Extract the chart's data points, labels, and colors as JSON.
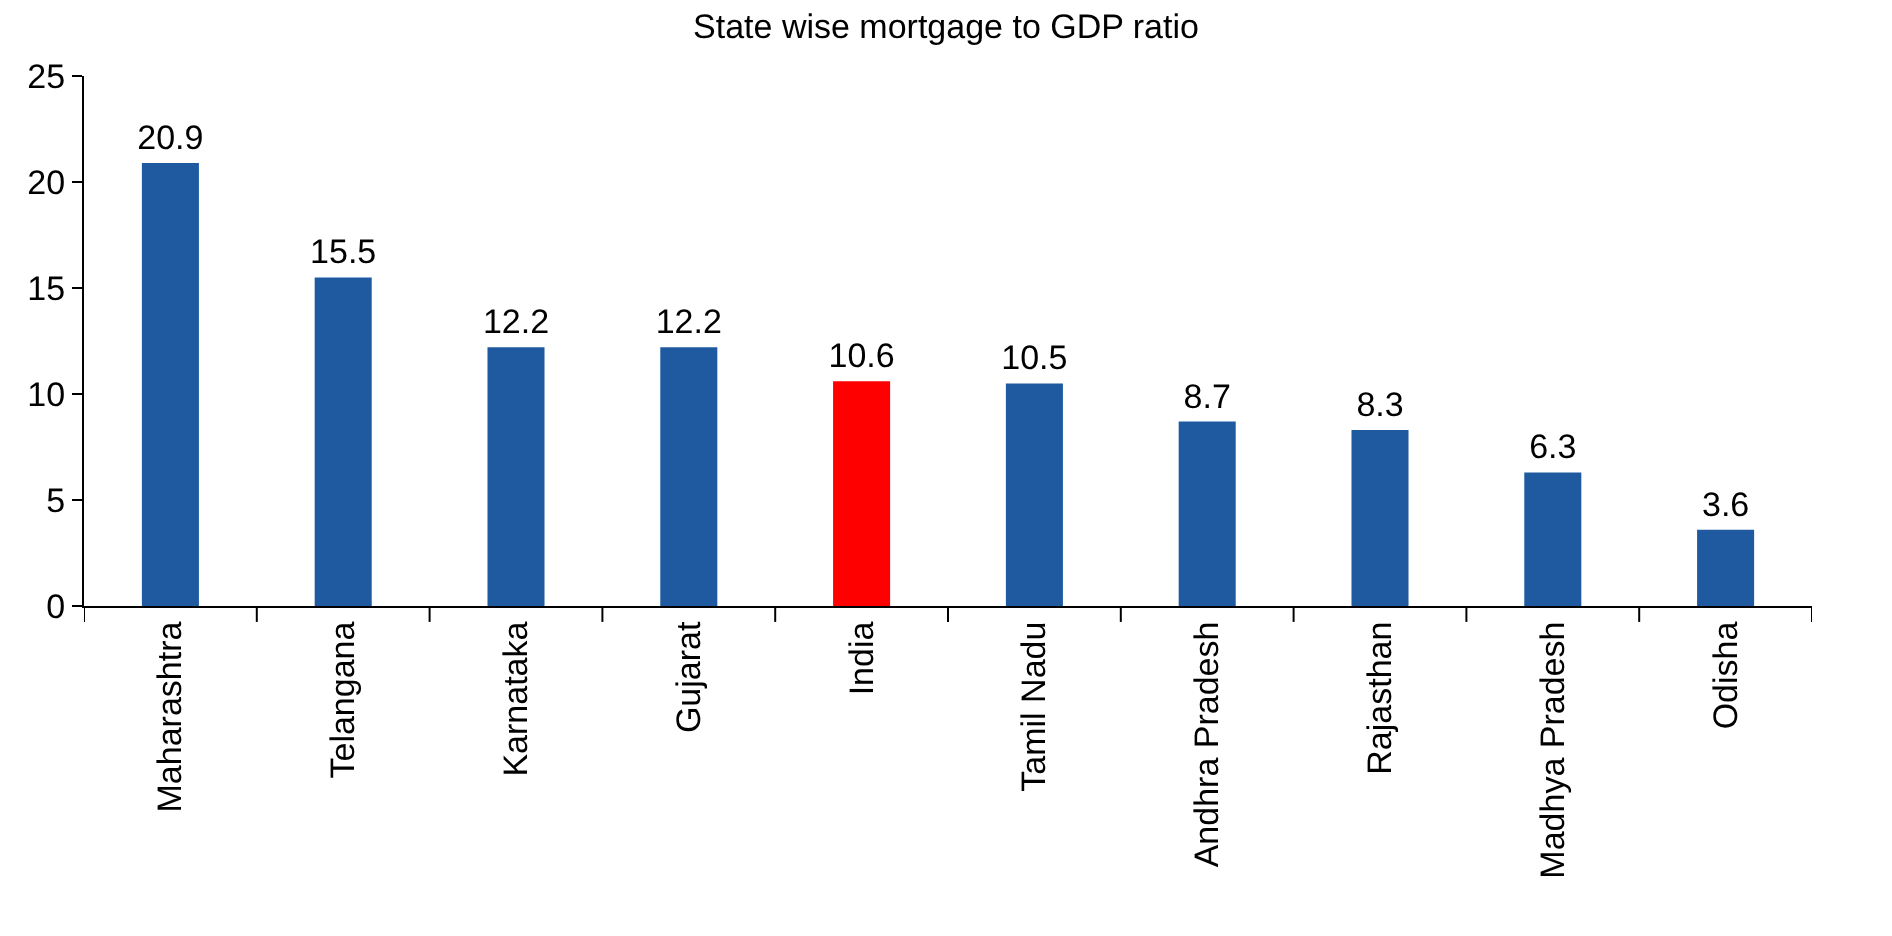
{
  "chart_data": {
    "type": "bar",
    "title": "State wise mortgage to GDP ratio",
    "categories": [
      "Maharashtra",
      "Telangana",
      "Karnataka",
      "Gujarat",
      "India",
      "Tamil Nadu",
      "Andhra Pradesh",
      "Rajasthan",
      "Madhya Pradesh",
      "Odisha"
    ],
    "values": [
      20.9,
      15.5,
      12.2,
      12.2,
      10.6,
      10.5,
      8.7,
      8.3,
      6.3,
      3.6
    ],
    "colors": [
      "#1f5aa0",
      "#1f5aa0",
      "#1f5aa0",
      "#1f5aa0",
      "#ff0000",
      "#1f5aa0",
      "#1f5aa0",
      "#1f5aa0",
      "#1f5aa0",
      "#1f5aa0"
    ],
    "ylim": [
      0,
      25
    ],
    "yticks": [
      0,
      5,
      10,
      15,
      20,
      25
    ],
    "grid": false,
    "data_labels": true
  }
}
